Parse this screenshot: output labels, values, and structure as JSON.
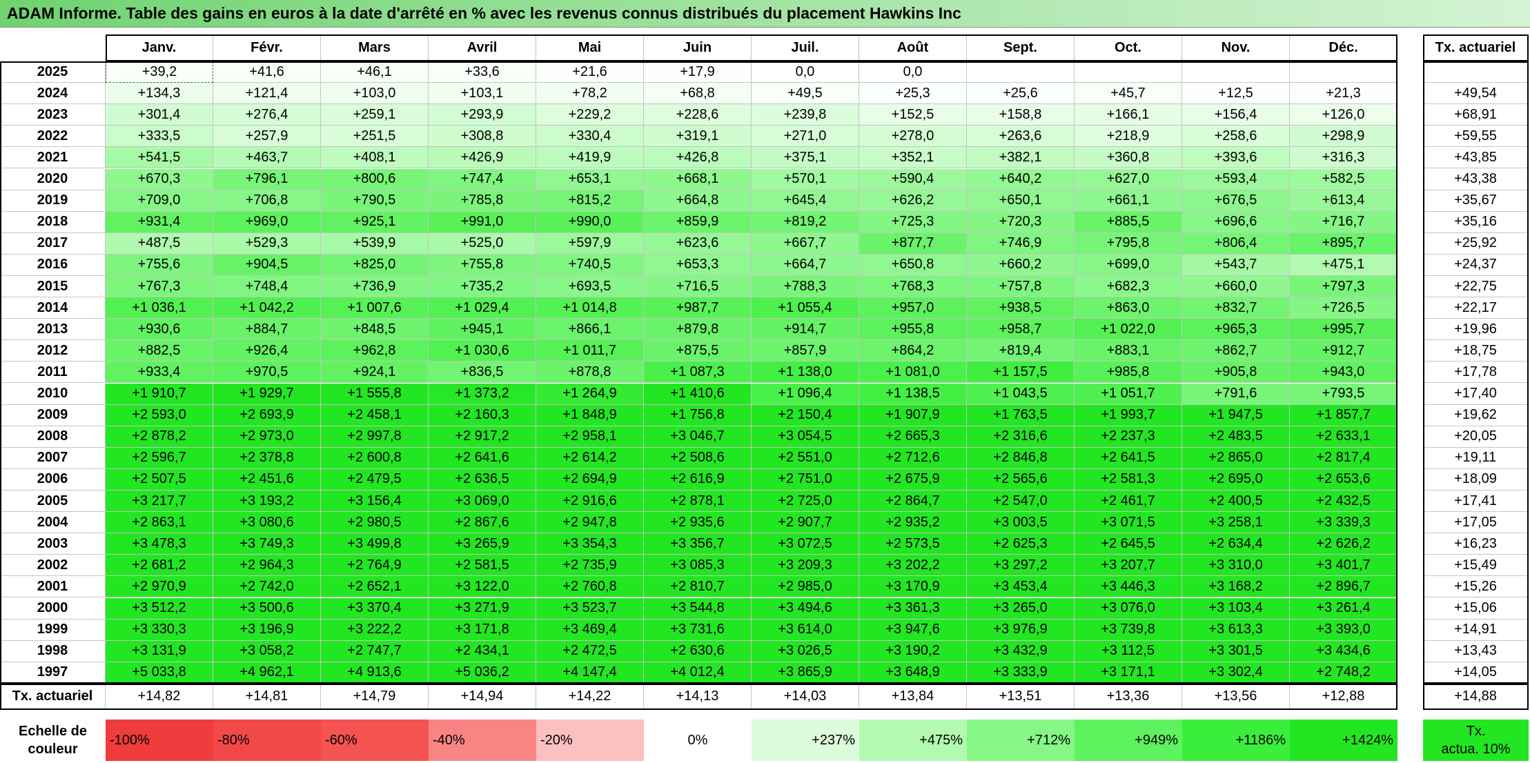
{
  "title": "ADAM Informe. Table des gains en euros à la date d'arrêté en % avec les revenus connus distribués du placement Hawkins Inc",
  "table": {
    "columns": [
      "Janv.",
      "Févr.",
      "Mars",
      "Avril",
      "Mai",
      "Juin",
      "Juil.",
      "Août",
      "Sept.",
      "Oct.",
      "Nov.",
      "Déc."
    ],
    "total_column": "Tx. actuariel",
    "rows": [
      {
        "year": "2025",
        "cells": [
          "+39,2",
          "+41,6",
          "+46,1",
          "+33,6",
          "+21,6",
          "+17,9",
          "0,0",
          "0,0",
          null,
          null,
          null,
          null
        ],
        "total": null
      },
      {
        "year": "2024",
        "cells": [
          "+134,3",
          "+121,4",
          "+103,0",
          "+103,1",
          "+78,2",
          "+68,8",
          "+49,5",
          "+25,3",
          "+25,6",
          "+45,7",
          "+12,5",
          "+21,3"
        ],
        "total": "+49,54"
      },
      {
        "year": "2023",
        "cells": [
          "+301,4",
          "+276,4",
          "+259,1",
          "+293,9",
          "+229,2",
          "+228,6",
          "+239,8",
          "+152,5",
          "+158,8",
          "+166,1",
          "+156,4",
          "+126,0"
        ],
        "total": "+68,91"
      },
      {
        "year": "2022",
        "cells": [
          "+333,5",
          "+257,9",
          "+251,5",
          "+308,8",
          "+330,4",
          "+319,1",
          "+271,0",
          "+278,0",
          "+263,6",
          "+218,9",
          "+258,6",
          "+298,9"
        ],
        "total": "+59,55"
      },
      {
        "year": "2021",
        "cells": [
          "+541,5",
          "+463,7",
          "+408,1",
          "+426,9",
          "+419,9",
          "+426,8",
          "+375,1",
          "+352,1",
          "+382,1",
          "+360,8",
          "+393,6",
          "+316,3"
        ],
        "total": "+43,85"
      },
      {
        "year": "2020",
        "cells": [
          "+670,3",
          "+796,1",
          "+800,6",
          "+747,4",
          "+653,1",
          "+668,1",
          "+570,1",
          "+590,4",
          "+640,2",
          "+627,0",
          "+593,4",
          "+582,5"
        ],
        "total": "+43,38"
      },
      {
        "year": "2019",
        "cells": [
          "+709,0",
          "+706,8",
          "+790,5",
          "+785,8",
          "+815,2",
          "+664,8",
          "+645,4",
          "+626,2",
          "+650,1",
          "+661,1",
          "+676,5",
          "+613,4"
        ],
        "total": "+35,67"
      },
      {
        "year": "2018",
        "cells": [
          "+931,4",
          "+969,0",
          "+925,1",
          "+991,0",
          "+990,0",
          "+859,9",
          "+819,2",
          "+725,3",
          "+720,3",
          "+885,5",
          "+696,6",
          "+716,7"
        ],
        "total": "+35,16"
      },
      {
        "year": "2017",
        "cells": [
          "+487,5",
          "+529,3",
          "+539,9",
          "+525,0",
          "+597,9",
          "+623,6",
          "+667,7",
          "+877,7",
          "+746,9",
          "+795,8",
          "+806,4",
          "+895,7"
        ],
        "total": "+25,92"
      },
      {
        "year": "2016",
        "cells": [
          "+755,6",
          "+904,5",
          "+825,0",
          "+755,8",
          "+740,5",
          "+653,3",
          "+664,7",
          "+650,8",
          "+660,2",
          "+699,0",
          "+543,7",
          "+475,1"
        ],
        "total": "+24,37"
      },
      {
        "year": "2015",
        "cells": [
          "+767,3",
          "+748,4",
          "+736,9",
          "+735,2",
          "+693,5",
          "+716,5",
          "+788,3",
          "+768,3",
          "+757,8",
          "+682,3",
          "+660,0",
          "+797,3"
        ],
        "total": "+22,75"
      },
      {
        "year": "2014",
        "cells": [
          "+1 036,1",
          "+1 042,2",
          "+1 007,6",
          "+1 029,4",
          "+1 014,8",
          "+987,7",
          "+1 055,4",
          "+957,0",
          "+938,5",
          "+863,0",
          "+832,7",
          "+726,5"
        ],
        "total": "+22,17"
      },
      {
        "year": "2013",
        "cells": [
          "+930,6",
          "+884,7",
          "+848,5",
          "+945,1",
          "+866,1",
          "+879,8",
          "+914,7",
          "+955,8",
          "+958,7",
          "+1 022,0",
          "+965,3",
          "+995,7"
        ],
        "total": "+19,96"
      },
      {
        "year": "2012",
        "cells": [
          "+882,5",
          "+926,4",
          "+962,8",
          "+1 030,6",
          "+1 011,7",
          "+875,5",
          "+857,9",
          "+864,2",
          "+819,4",
          "+883,1",
          "+862,7",
          "+912,7"
        ],
        "total": "+18,75"
      },
      {
        "year": "2011",
        "cells": [
          "+933,4",
          "+970,5",
          "+924,1",
          "+836,5",
          "+878,8",
          "+1 087,3",
          "+1 138,0",
          "+1 081,0",
          "+1 157,5",
          "+985,8",
          "+905,8",
          "+943,0"
        ],
        "total": "+17,78"
      },
      {
        "year": "2010",
        "cells": [
          "+1 910,7",
          "+1 929,7",
          "+1 555,8",
          "+1 373,2",
          "+1 264,9",
          "+1 410,6",
          "+1 096,4",
          "+1 138,5",
          "+1 043,5",
          "+1 051,7",
          "+791,6",
          "+793,5"
        ],
        "total": "+17,40"
      },
      {
        "year": "2009",
        "cells": [
          "+2 593,0",
          "+2 693,9",
          "+2 458,1",
          "+2 160,3",
          "+1 848,9",
          "+1 756,8",
          "+2 150,4",
          "+1 907,9",
          "+1 763,5",
          "+1 993,7",
          "+1 947,5",
          "+1 857,7"
        ],
        "total": "+19,62"
      },
      {
        "year": "2008",
        "cells": [
          "+2 878,2",
          "+2 973,0",
          "+2 997,8",
          "+2 917,2",
          "+2 958,1",
          "+3 046,7",
          "+3 054,5",
          "+2 665,3",
          "+2 316,6",
          "+2 237,3",
          "+2 483,5",
          "+2 633,1"
        ],
        "total": "+20,05"
      },
      {
        "year": "2007",
        "cells": [
          "+2 596,7",
          "+2 378,8",
          "+2 600,8",
          "+2 641,6",
          "+2 614,2",
          "+2 508,6",
          "+2 551,0",
          "+2 712,6",
          "+2 846,8",
          "+2 641,5",
          "+2 865,0",
          "+2 817,4"
        ],
        "total": "+19,11"
      },
      {
        "year": "2006",
        "cells": [
          "+2 507,5",
          "+2 451,6",
          "+2 479,5",
          "+2 636,5",
          "+2 694,9",
          "+2 616,9",
          "+2 751,0",
          "+2 675,9",
          "+2 565,6",
          "+2 581,3",
          "+2 695,0",
          "+2 653,6"
        ],
        "total": "+18,09"
      },
      {
        "year": "2005",
        "cells": [
          "+3 217,7",
          "+3 193,2",
          "+3 156,4",
          "+3 069,0",
          "+2 916,6",
          "+2 878,1",
          "+2 725,0",
          "+2 864,7",
          "+2 547,0",
          "+2 461,7",
          "+2 400,5",
          "+2 432,5"
        ],
        "total": "+17,41"
      },
      {
        "year": "2004",
        "cells": [
          "+2 863,1",
          "+3 080,6",
          "+2 980,5",
          "+2 867,6",
          "+2 947,8",
          "+2 935,6",
          "+2 907,7",
          "+2 935,2",
          "+3 003,5",
          "+3 071,5",
          "+3 258,1",
          "+3 339,3"
        ],
        "total": "+17,05"
      },
      {
        "year": "2003",
        "cells": [
          "+3 478,3",
          "+3 749,3",
          "+3 499,8",
          "+3 265,9",
          "+3 354,3",
          "+3 356,7",
          "+3 072,5",
          "+2 573,5",
          "+2 625,3",
          "+2 645,5",
          "+2 634,4",
          "+2 626,2"
        ],
        "total": "+16,23"
      },
      {
        "year": "2002",
        "cells": [
          "+2 681,2",
          "+2 964,3",
          "+2 764,9",
          "+2 581,5",
          "+2 735,9",
          "+3 085,3",
          "+3 209,3",
          "+3 202,2",
          "+3 297,2",
          "+3 207,7",
          "+3 310,0",
          "+3 401,7"
        ],
        "total": "+15,49"
      },
      {
        "year": "2001",
        "cells": [
          "+2 970,9",
          "+2 742,0",
          "+2 652,1",
          "+3 122,0",
          "+2 760,8",
          "+2 810,7",
          "+2 985,0",
          "+3 170,9",
          "+3 453,4",
          "+3 446,3",
          "+3 168,2",
          "+2 896,7"
        ],
        "total": "+15,26"
      },
      {
        "year": "2000",
        "cells": [
          "+3 512,2",
          "+3 500,6",
          "+3 370,4",
          "+3 271,9",
          "+3 523,7",
          "+3 544,8",
          "+3 494,6",
          "+3 361,3",
          "+3 265,0",
          "+3 076,0",
          "+3 103,4",
          "+3 261,4"
        ],
        "total": "+15,06"
      },
      {
        "year": "1999",
        "cells": [
          "+3 330,3",
          "+3 196,9",
          "+3 222,2",
          "+3 171,8",
          "+3 469,4",
          "+3 731,6",
          "+3 614,0",
          "+3 947,6",
          "+3 976,9",
          "+3 739,8",
          "+3 613,3",
          "+3 393,0"
        ],
        "total": "+14,91"
      },
      {
        "year": "1998",
        "cells": [
          "+3 131,9",
          "+3 058,2",
          "+2 747,7",
          "+2 434,1",
          "+2 472,5",
          "+2 630,6",
          "+3 026,5",
          "+3 190,2",
          "+3 432,9",
          "+3 112,5",
          "+3 301,5",
          "+3 434,6"
        ],
        "total": "+13,43"
      },
      {
        "year": "1997",
        "cells": [
          "+5 033,8",
          "+4 962,1",
          "+4 913,6",
          "+5 036,2",
          "+4 147,4",
          "+4 012,4",
          "+3 865,9",
          "+3 648,9",
          "+3 333,9",
          "+3 171,1",
          "+3 302,4",
          "+2 748,2"
        ],
        "total": "+14,05"
      }
    ],
    "footer": {
      "label": "Tx. actuariel",
      "cells": [
        "+14,82",
        "+14,81",
        "+14,79",
        "+14,94",
        "+14,22",
        "+14,13",
        "+14,03",
        "+13,84",
        "+13,51",
        "+13,36",
        "+13,56",
        "+12,88"
      ],
      "total": "+14,88"
    }
  },
  "color_scale": {
    "label": [
      "Echelle de",
      "couleur"
    ],
    "stops": [
      {
        "value": -100,
        "label": "-100%",
        "color": "#f03c3c"
      },
      {
        "value": -80,
        "label": "-80%",
        "color": "#f24848"
      },
      {
        "value": -60,
        "label": "-60%",
        "color": "#f55252"
      },
      {
        "value": -40,
        "label": "-40%",
        "color": "#f98484"
      },
      {
        "value": -20,
        "label": "-20%",
        "color": "#fcc0c0"
      },
      {
        "value": 0,
        "label": "0%",
        "color": "#ffffff"
      },
      {
        "value": 237,
        "label": "+237%",
        "color": "#dcfddc"
      },
      {
        "value": 475,
        "label": "+475%",
        "color": "#b2fab2"
      },
      {
        "value": 712,
        "label": "+712%",
        "color": "#86f686"
      },
      {
        "value": 949,
        "label": "+949%",
        "color": "#5ef25e"
      },
      {
        "value": 1186,
        "label": "+1186%",
        "color": "#3bee3b"
      },
      {
        "value": 1424,
        "label": "+1424%",
        "color": "#22e622"
      }
    ],
    "rate_label": [
      "Tx.",
      "actua. 10%"
    ],
    "rate_color": "#22e622"
  }
}
